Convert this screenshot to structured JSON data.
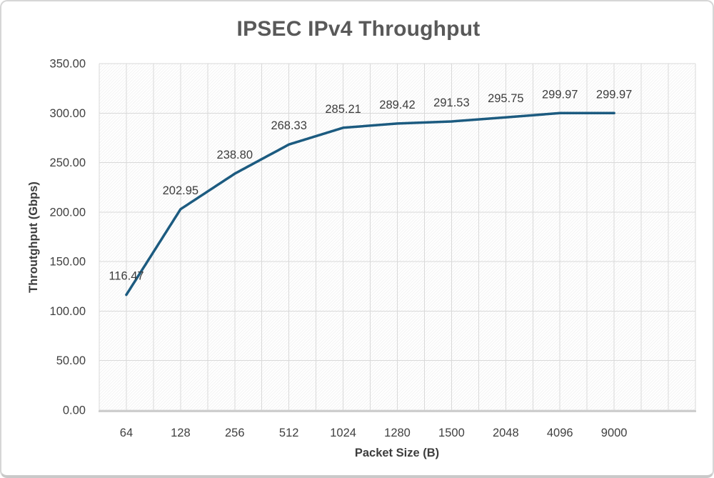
{
  "window": {
    "background": "#ffffff",
    "border_color": "#d6d6d6",
    "border_bottom_color": "#c9c9c9"
  },
  "chart_data": {
    "type": "line",
    "title": "IPSEC IPv4 Throughput",
    "xlabel": "Packet Size (B)",
    "ylabel": "Throutghput (Gbps)",
    "categories": [
      "64",
      "128",
      "256",
      "512",
      "1024",
      "1280",
      "1500",
      "2048",
      "4096",
      "9000"
    ],
    "series": [
      {
        "name": "IPSEC IPv4 Throughput",
        "values": [
          116.47,
          202.95,
          238.8,
          268.33,
          285.21,
          289.42,
          291.53,
          295.75,
          299.97,
          299.97
        ],
        "data_labels": [
          "116.47",
          "202.95",
          "238.80",
          "268.33",
          "285.21",
          "289.42",
          "291.53",
          "295.75",
          "299.97",
          "299.97"
        ]
      }
    ],
    "ylim": [
      0,
      350
    ],
    "y_major_unit": 50,
    "y_tick_labels": [
      "0.00",
      "50.00",
      "100.00",
      "150.00",
      "200.00",
      "250.00",
      "300.00",
      "350.00"
    ],
    "grid": true,
    "legend_position": "none",
    "plot_area_fill": "diagonal-hatch",
    "colors": {
      "line": "#1c5b80",
      "title_text": "#595959",
      "axis_text": "#404040",
      "gridline": "#d9d9d9",
      "axis_line": "#c9c9c9",
      "hatch": "#ececec"
    }
  }
}
